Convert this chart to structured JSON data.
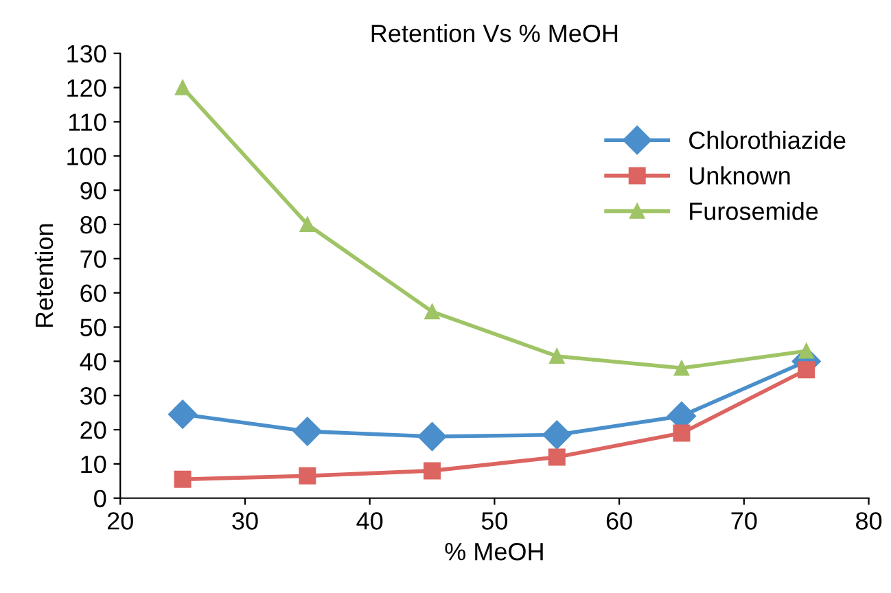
{
  "chart_data": {
    "type": "line",
    "title": "Retention Vs % MeOH",
    "xlabel": "% MeOH",
    "ylabel": "Retention",
    "x": [
      25,
      35,
      45,
      55,
      65,
      75
    ],
    "series": [
      {
        "name": "Chlorothiazide",
        "color": "#4a8fcb",
        "marker": "diamond",
        "values": [
          24.5,
          19.5,
          18,
          18.5,
          24,
          40
        ]
      },
      {
        "name": "Unknown",
        "color": "#dc6461",
        "marker": "square",
        "values": [
          5.5,
          6.5,
          8,
          12,
          19,
          37.5
        ]
      },
      {
        "name": "Furosemide",
        "color": "#9fc465",
        "marker": "triangle",
        "values": [
          120,
          80,
          54.5,
          41.5,
          38,
          43
        ]
      }
    ],
    "xlim": [
      20,
      80
    ],
    "xticks": [
      20,
      30,
      40,
      50,
      60,
      70,
      80
    ],
    "ylim": [
      0,
      130
    ],
    "yticks": [
      0,
      10,
      20,
      30,
      40,
      50,
      60,
      70,
      80,
      90,
      100,
      110,
      120,
      130
    ],
    "grid": false,
    "legend": "right",
    "line_style": "solid"
  }
}
